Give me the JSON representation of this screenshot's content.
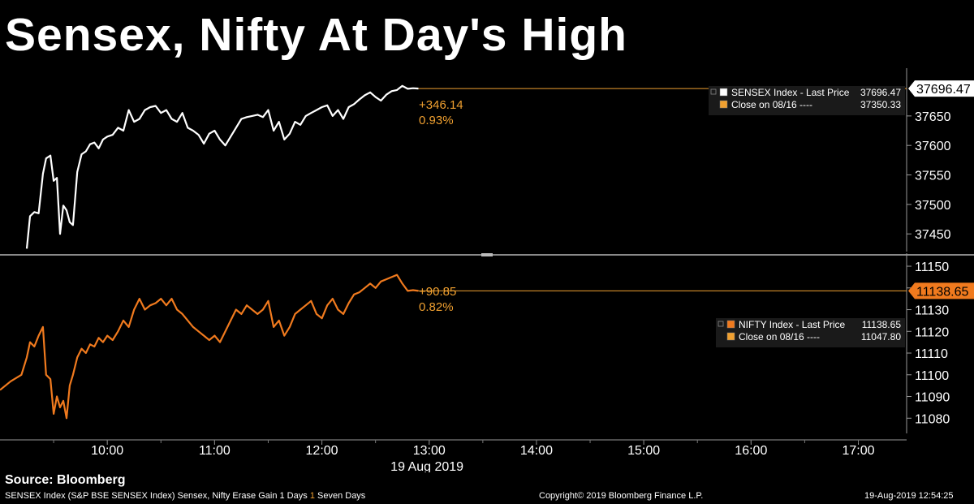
{
  "headline": "Sensex, Nifty At Day's High",
  "colors": {
    "sensex": "#ffffff",
    "nifty": "#f07a1e",
    "close": "#f0a030",
    "axis": "#aaaaaa"
  },
  "chart_data": [
    {
      "type": "line",
      "name": "SENSEX",
      "legend": [
        {
          "label": "SENSEX Index - Last Price",
          "value": "37696.47",
          "color": "#ffffff"
        },
        {
          "label": "Close on 08/16 ----",
          "value": "37350.33",
          "color": "#f0a030"
        }
      ],
      "last_price_label": "37696.47",
      "change": "+346.14",
      "change_pct": "0.93%",
      "y_ticks": [
        37450,
        37500,
        37550,
        37600,
        37650
      ],
      "y_tick_labels": [
        "37450",
        "37500",
        "37550",
        "37600",
        "37650"
      ],
      "ylim": [
        37420,
        37720
      ],
      "x": [
        9.25,
        9.28,
        9.32,
        9.36,
        9.4,
        9.43,
        9.47,
        9.5,
        9.53,
        9.56,
        9.59,
        9.62,
        9.65,
        9.68,
        9.72,
        9.76,
        9.8,
        9.84,
        9.88,
        9.92,
        9.96,
        10.0,
        10.05,
        10.1,
        10.15,
        10.2,
        10.25,
        10.3,
        10.35,
        10.4,
        10.45,
        10.5,
        10.55,
        10.6,
        10.65,
        10.7,
        10.75,
        10.8,
        10.85,
        10.9,
        10.95,
        11.0,
        11.05,
        11.1,
        11.15,
        11.2,
        11.25,
        11.3,
        11.35,
        11.4,
        11.45,
        11.5,
        11.55,
        11.6,
        11.65,
        11.7,
        11.75,
        11.8,
        11.85,
        11.9,
        11.95,
        12.0,
        12.05,
        12.1,
        12.15,
        12.2,
        12.25,
        12.3,
        12.35,
        12.4,
        12.45,
        12.5,
        12.55,
        12.6,
        12.65,
        12.7,
        12.75,
        12.8,
        12.85,
        12.9
      ],
      "values": [
        37425,
        37480,
        37487,
        37485,
        37552,
        37578,
        37583,
        37540,
        37545,
        37450,
        37498,
        37490,
        37470,
        37465,
        37555,
        37585,
        37590,
        37602,
        37605,
        37595,
        37610,
        37615,
        37618,
        37630,
        37625,
        37660,
        37640,
        37645,
        37660,
        37665,
        37667,
        37655,
        37660,
        37645,
        37640,
        37655,
        37630,
        37625,
        37618,
        37603,
        37620,
        37625,
        37610,
        37600,
        37615,
        37630,
        37645,
        37648,
        37650,
        37652,
        37648,
        37660,
        37625,
        37640,
        37610,
        37620,
        37640,
        37635,
        37650,
        37655,
        37660,
        37665,
        37668,
        37650,
        37660,
        37645,
        37665,
        37670,
        37678,
        37685,
        37690,
        37682,
        37676,
        37686,
        37692,
        37694,
        37701,
        37696,
        37697,
        37696.47
      ],
      "close": 37350.33
    },
    {
      "type": "line",
      "name": "NIFTY",
      "legend": [
        {
          "label": "NIFTY Index - Last Price",
          "value": "11138.65",
          "color": "#f07a1e"
        },
        {
          "label": "Close on 08/16 ----",
          "value": "11047.80",
          "color": "#f0a030"
        }
      ],
      "last_price_label": "11138.65",
      "change": "+90.85",
      "change_pct": "0.82%",
      "y_ticks": [
        11080,
        11090,
        11100,
        11110,
        11120,
        11130,
        11140,
        11150
      ],
      "y_tick_labels": [
        "11080",
        "11090",
        "11100",
        "11110",
        "11120",
        "11130",
        "11140",
        "11150"
      ],
      "ylim": [
        11073,
        11153
      ],
      "x": [
        9.0,
        9.1,
        9.2,
        9.25,
        9.28,
        9.32,
        9.36,
        9.4,
        9.43,
        9.47,
        9.5,
        9.53,
        9.56,
        9.59,
        9.62,
        9.65,
        9.68,
        9.72,
        9.76,
        9.8,
        9.84,
        9.88,
        9.92,
        9.96,
        10.0,
        10.05,
        10.1,
        10.15,
        10.2,
        10.25,
        10.3,
        10.35,
        10.4,
        10.45,
        10.5,
        10.55,
        10.6,
        10.65,
        10.7,
        10.75,
        10.8,
        10.85,
        10.9,
        10.95,
        11.0,
        11.05,
        11.1,
        11.15,
        11.2,
        11.25,
        11.3,
        11.35,
        11.4,
        11.45,
        11.5,
        11.55,
        11.6,
        11.65,
        11.7,
        11.75,
        11.8,
        11.85,
        11.9,
        11.95,
        12.0,
        12.05,
        12.1,
        12.15,
        12.2,
        12.25,
        12.3,
        12.35,
        12.4,
        12.45,
        12.5,
        12.55,
        12.6,
        12.65,
        12.7,
        12.75,
        12.8,
        12.85,
        12.9
      ],
      "values": [
        11093,
        11097,
        11100,
        11108,
        11115,
        11113,
        11118,
        11122,
        11100,
        11098,
        11082,
        11090,
        11085,
        11088,
        11080,
        11095,
        11100,
        11108,
        11112,
        11110,
        11114,
        11113,
        11117,
        11115,
        11118,
        11116,
        11120,
        11125,
        11122,
        11130,
        11135,
        11130,
        11132,
        11133,
        11135,
        11132,
        11135,
        11130,
        11128,
        11125,
        11122,
        11120,
        11118,
        11116,
        11118,
        11115,
        11120,
        11125,
        11130,
        11128,
        11132,
        11130,
        11128,
        11130,
        11134,
        11122,
        11125,
        11118,
        11122,
        11128,
        11130,
        11132,
        11134,
        11128,
        11126,
        11132,
        11135,
        11130,
        11128,
        11133,
        11137,
        11138,
        11140,
        11142,
        11140,
        11143,
        11144,
        11145,
        11146,
        11142,
        11138.65,
        11139,
        11138.65
      ],
      "close": 11047.8
    }
  ],
  "x_axis": {
    "ticks": [
      10,
      11,
      12,
      13,
      14,
      15,
      16,
      17
    ],
    "tick_labels": [
      "10:00",
      "11:00",
      "12:00",
      "13:00",
      "14:00",
      "15:00",
      "16:00",
      "17:00"
    ],
    "date_label": "19 Aug 2019",
    "xlim": [
      9.0,
      17.45
    ]
  },
  "source": "Source: Bloomberg",
  "footer": {
    "left": "SENSEX Index (S&P BSE SENSEX Index) Sensex, Nifty Erase Gain 1 Days",
    "left_highlight": "1",
    "left_suffix": "Seven Days",
    "center": "Copyright© 2019 Bloomberg Finance L.P.",
    "right": "19-Aug-2019 12:54:25"
  }
}
